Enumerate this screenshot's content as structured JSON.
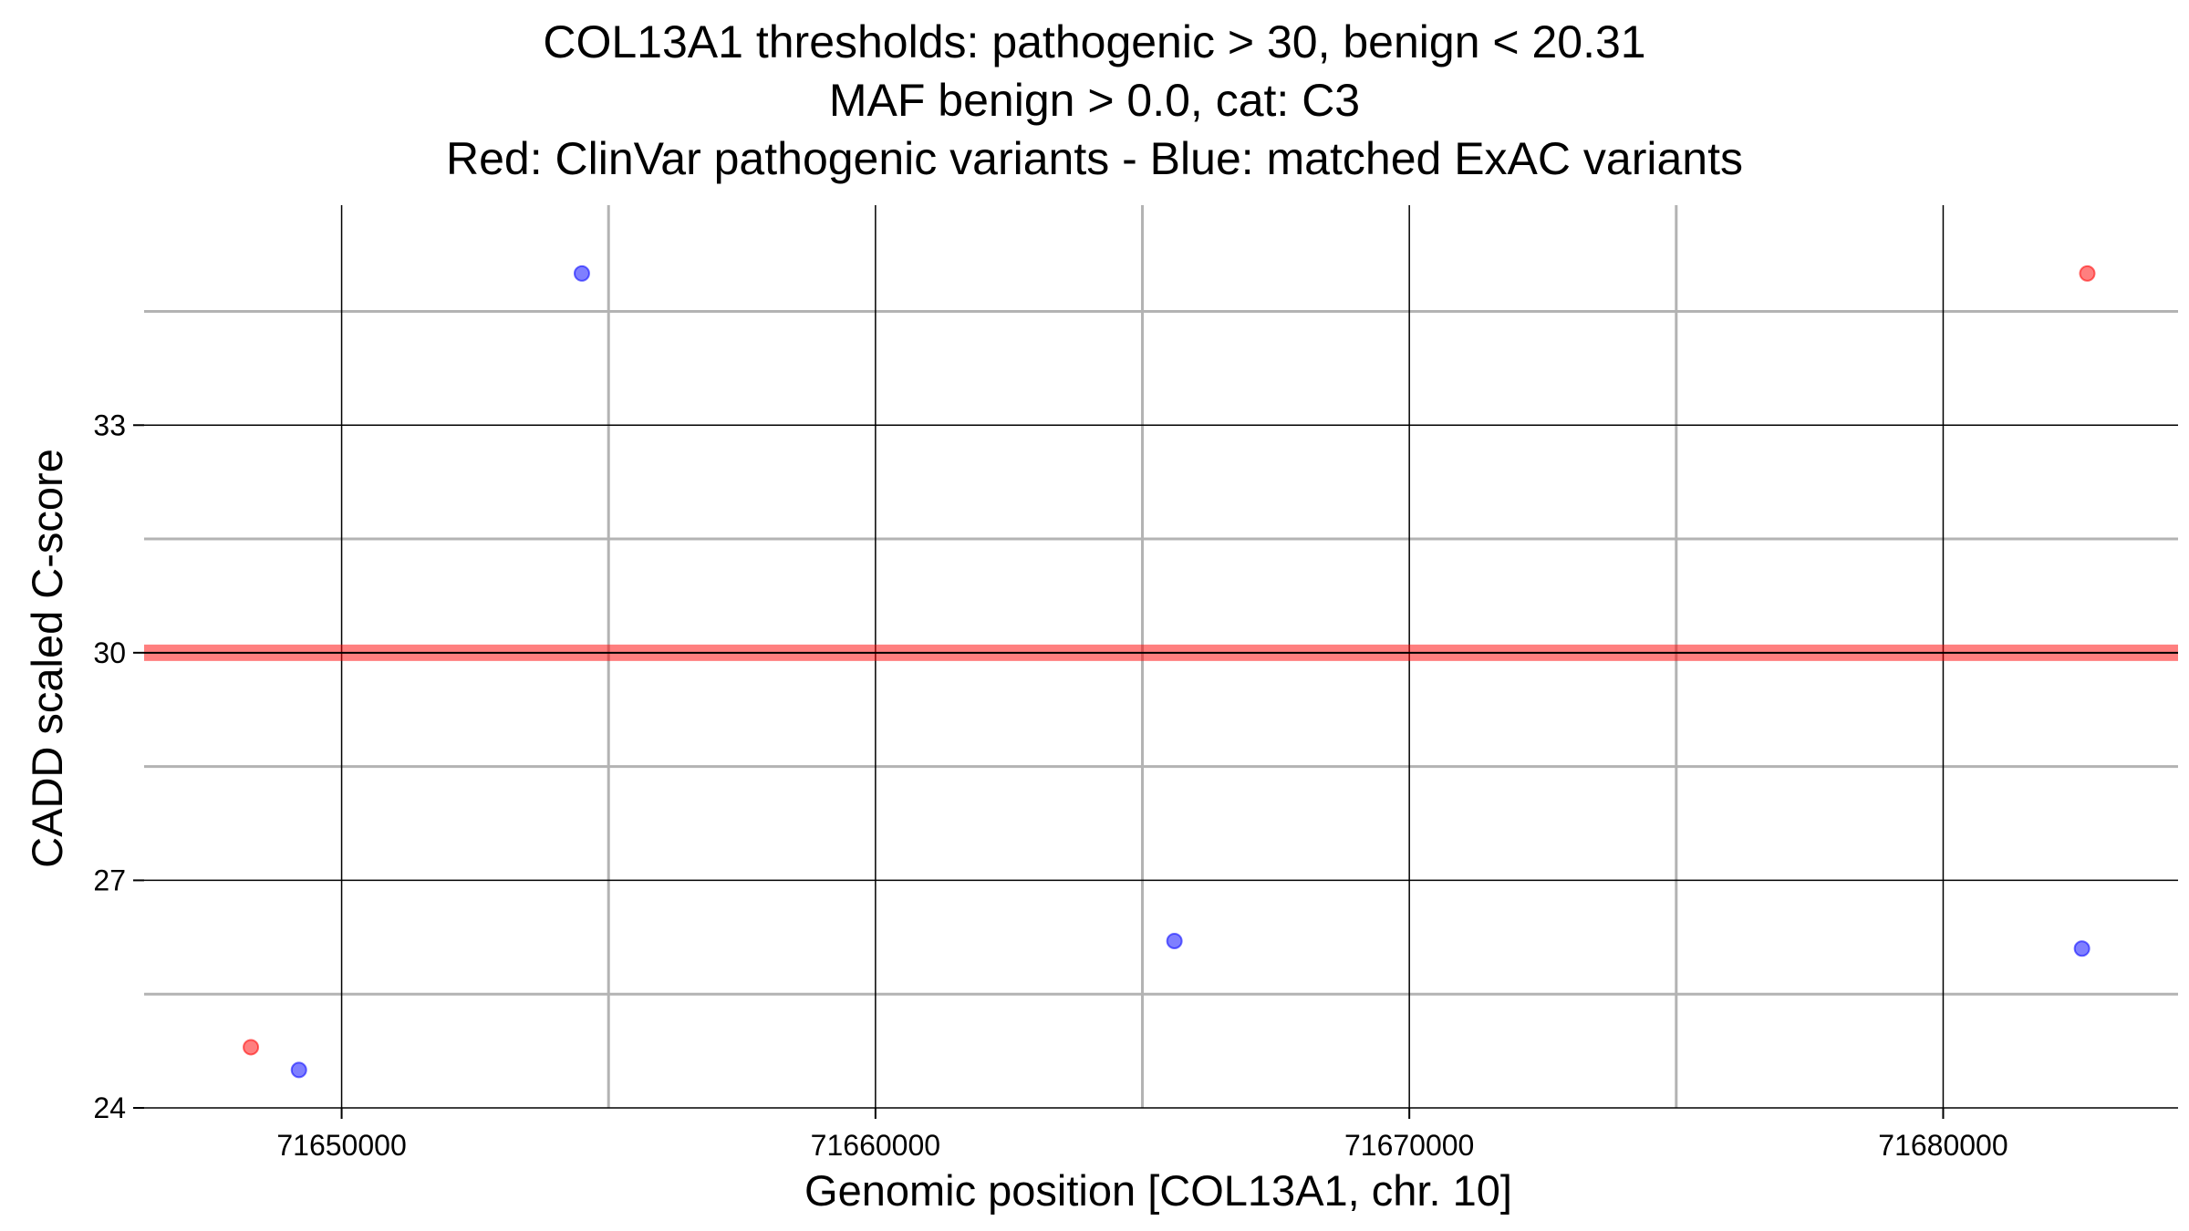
{
  "title_lines": [
    "COL13A1 thresholds: pathogenic > 30, benign < 20.31",
    "MAF benign > 0.0, cat: C3",
    "Red: ClinVar pathogenic variants - Blue: matched ExAC variants"
  ],
  "chart_data": {
    "type": "scatter",
    "xlabel": "Genomic position [COL13A1, chr. 10]",
    "ylabel": "CADD scaled C-score",
    "xlim": [
      71646300,
      71684400
    ],
    "ylim": [
      24,
      35.9
    ],
    "x_ticks": [
      71650000,
      71660000,
      71670000,
      71680000
    ],
    "x_tick_labels": [
      "71650000",
      "71660000",
      "71670000",
      "71680000"
    ],
    "y_ticks": [
      24,
      27,
      30,
      33
    ],
    "y_tick_labels": [
      "24",
      "27",
      "30",
      "33"
    ],
    "x_minor_grid": [
      71655000,
      71665000,
      71675000
    ],
    "y_minor_grid": [
      25.5,
      28.5,
      31.5,
      34.5
    ],
    "grid": true,
    "threshold_line": {
      "y": 30,
      "color": "#ff0000"
    },
    "series": [
      {
        "color": "#ff0000",
        "points": [
          {
            "x": 71648300,
            "y": 24.8
          },
          {
            "x": 71682700,
            "y": 35.0
          }
        ]
      },
      {
        "color": "#0000ff",
        "points": [
          {
            "x": 71649200,
            "y": 24.5
          },
          {
            "x": 71654500,
            "y": 35.0
          },
          {
            "x": 71665600,
            "y": 26.2
          },
          {
            "x": 71682600,
            "y": 26.1
          }
        ]
      }
    ]
  }
}
